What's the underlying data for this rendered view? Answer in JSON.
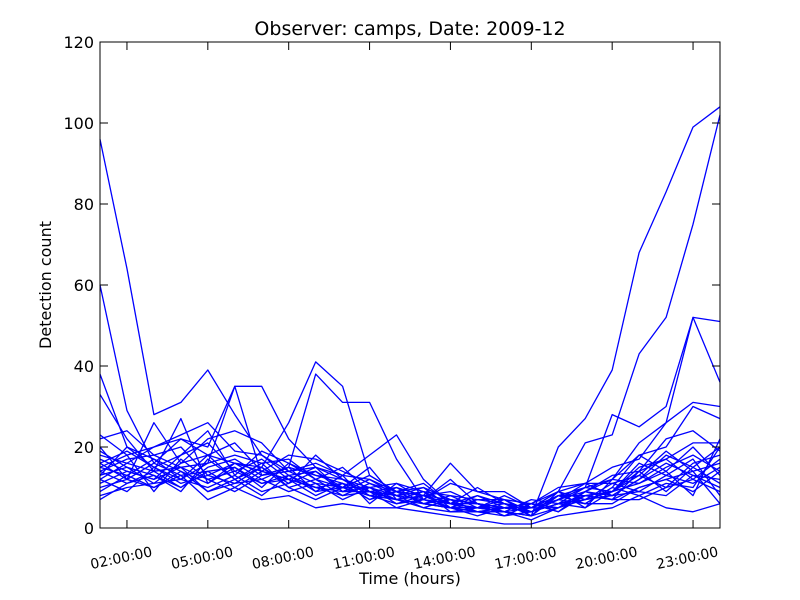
{
  "chart_data": {
    "type": "line",
    "title": "Observer: camps, Date: 2009-12",
    "xlabel": "Time (hours)",
    "ylabel": "Detection count",
    "xlim": [
      1,
      24
    ],
    "ylim": [
      0,
      120
    ],
    "grid": false,
    "line_color": "#0000ff",
    "x_ticks": [
      {
        "value": 2,
        "label": "02:00:00"
      },
      {
        "value": 5,
        "label": "05:00:00"
      },
      {
        "value": 8,
        "label": "08:00:00"
      },
      {
        "value": 11,
        "label": "11:00:00"
      },
      {
        "value": 14,
        "label": "14:00:00"
      },
      {
        "value": 17,
        "label": "17:00:00"
      },
      {
        "value": 20,
        "label": "20:00:00"
      },
      {
        "value": 23,
        "label": "23:00:00"
      }
    ],
    "y_ticks": [
      {
        "value": 0,
        "label": "0"
      },
      {
        "value": 20,
        "label": "20"
      },
      {
        "value": 40,
        "label": "40"
      },
      {
        "value": 60,
        "label": "60"
      },
      {
        "value": 80,
        "label": "80"
      },
      {
        "value": 100,
        "label": "100"
      },
      {
        "value": 120,
        "label": "120"
      }
    ],
    "x": [
      1,
      2,
      3,
      4,
      5,
      6,
      7,
      8,
      9,
      10,
      11,
      12,
      13,
      14,
      15,
      16,
      17,
      18,
      19,
      20,
      21,
      22,
      23,
      24
    ],
    "series": [
      {
        "values": [
          96,
          64,
          28,
          31,
          39,
          28,
          18,
          13,
          9,
          10,
          13,
          9,
          6,
          5,
          4,
          4,
          3,
          20,
          27,
          39,
          68,
          83,
          99,
          104
        ]
      },
      {
        "values": [
          60,
          29,
          16,
          22,
          20,
          35,
          35,
          22,
          15,
          12,
          10,
          7,
          5,
          4,
          4,
          5,
          6,
          9,
          21,
          23,
          43,
          52,
          75,
          102
        ]
      },
      {
        "values": [
          38,
          20,
          15,
          12,
          18,
          16,
          14,
          12,
          10,
          8,
          9,
          7,
          6,
          5,
          5,
          5,
          4,
          7,
          9,
          12,
          21,
          26,
          52,
          51
        ]
      },
      {
        "values": [
          33,
          22,
          14,
          27,
          11,
          16,
          15,
          26,
          41,
          35,
          13,
          9,
          8,
          7,
          6,
          5,
          4,
          8,
          10,
          28,
          25,
          30,
          52,
          36
        ]
      },
      {
        "values": [
          22,
          24,
          18,
          15,
          16,
          35,
          13,
          15,
          38,
          31,
          31,
          17,
          7,
          11,
          9,
          9,
          5,
          9,
          11,
          15,
          17,
          26,
          31,
          30
        ]
      },
      {
        "values": [
          23,
          18,
          20,
          23,
          26,
          19,
          18,
          14,
          15,
          13,
          18,
          23,
          12,
          6,
          5,
          7,
          4,
          6,
          10,
          12,
          18,
          20,
          30,
          27
        ]
      },
      {
        "values": [
          20,
          12,
          26,
          16,
          22,
          24,
          21,
          14,
          16,
          13,
          12,
          9,
          6,
          5,
          5,
          4,
          3,
          5,
          8,
          9,
          14,
          22,
          24,
          19
        ]
      },
      {
        "values": [
          18,
          16,
          20,
          22,
          18,
          21,
          14,
          18,
          17,
          14,
          11,
          8,
          9,
          6,
          4,
          3,
          4,
          6,
          7,
          9,
          15,
          17,
          21,
          21
        ]
      },
      {
        "values": [
          17,
          14,
          12,
          18,
          24,
          13,
          19,
          16,
          12,
          10,
          15,
          7,
          8,
          9,
          6,
          5,
          4,
          7,
          11,
          8,
          12,
          18,
          15,
          20
        ]
      },
      {
        "values": [
          16,
          19,
          15,
          18,
          21,
          14,
          17,
          12,
          15,
          9,
          10,
          11,
          7,
          6,
          10,
          6,
          5,
          8,
          6,
          10,
          18,
          14,
          20,
          13
        ]
      },
      {
        "values": [
          15,
          13,
          17,
          12,
          16,
          18,
          16,
          17,
          12,
          15,
          9,
          8,
          10,
          7,
          6,
          4,
          2,
          5,
          9,
          13,
          14,
          17,
          12,
          17
        ]
      },
      {
        "values": [
          14,
          17,
          18,
          20,
          13,
          16,
          12,
          15,
          13,
          11,
          9,
          10,
          6,
          8,
          5,
          8,
          5,
          7,
          10,
          9,
          11,
          15,
          18,
          14
        ]
      },
      {
        "values": [
          13,
          15,
          11,
          16,
          18,
          12,
          15,
          11,
          18,
          12,
          8,
          9,
          11,
          6,
          8,
          5,
          6,
          4,
          8,
          7,
          10,
          12,
          14,
          16
        ]
      },
      {
        "values": [
          12,
          16,
          14,
          10,
          15,
          17,
          13,
          14,
          11,
          10,
          10,
          6,
          7,
          5,
          7,
          6,
          4,
          6,
          5,
          9,
          13,
          10,
          16,
          18
        ]
      },
      {
        "values": [
          11,
          14,
          12,
          15,
          12,
          14,
          11,
          13,
          14,
          9,
          12,
          8,
          5,
          7,
          4,
          5,
          5,
          9,
          7,
          11,
          9,
          13,
          11,
          15
        ]
      },
      {
        "values": [
          10,
          12,
          16,
          13,
          14,
          10,
          14,
          12,
          10,
          11,
          7,
          10,
          8,
          6,
          6,
          3,
          6,
          5,
          9,
          8,
          12,
          16,
          13,
          12
        ]
      },
      {
        "values": [
          9,
          13,
          10,
          14,
          11,
          15,
          10,
          16,
          13,
          12,
          9,
          7,
          9,
          4,
          5,
          6,
          3,
          8,
          6,
          10,
          8,
          11,
          10,
          20
        ]
      },
      {
        "values": [
          14,
          11,
          13,
          9,
          17,
          12,
          16,
          10,
          12,
          8,
          11,
          9,
          6,
          7,
          6,
          4,
          7,
          6,
          8,
          7,
          14,
          9,
          15,
          11
        ]
      },
      {
        "values": [
          8,
          10,
          11,
          12,
          10,
          13,
          9,
          11,
          14,
          10,
          8,
          6,
          8,
          5,
          3,
          5,
          4,
          7,
          6,
          6,
          10,
          12,
          9,
          14
        ]
      },
      {
        "values": [
          12,
          9,
          15,
          11,
          13,
          11,
          12,
          9,
          11,
          7,
          10,
          8,
          7,
          6,
          5,
          4,
          5,
          5,
          7,
          8,
          9,
          8,
          13,
          10
        ]
      },
      {
        "values": [
          15,
          18,
          9,
          17,
          12,
          9,
          13,
          15,
          9,
          13,
          6,
          11,
          9,
          8,
          7,
          7,
          3,
          9,
          5,
          12,
          11,
          14,
          8,
          22
        ]
      },
      {
        "values": [
          7,
          11,
          14,
          15,
          9,
          12,
          8,
          13,
          10,
          9,
          9,
          5,
          7,
          12,
          6,
          5,
          6,
          4,
          9,
          7,
          7,
          10,
          12,
          9
        ]
      },
      {
        "values": [
          19,
          15,
          13,
          10,
          14,
          15,
          11,
          12,
          8,
          11,
          7,
          9,
          10,
          5,
          8,
          6,
          5,
          8,
          8,
          9,
          16,
          13,
          17,
          8
        ]
      },
      {
        "values": [
          13,
          20,
          17,
          14,
          9,
          11,
          15,
          10,
          7,
          10,
          8,
          7,
          8,
          16,
          9,
          7,
          6,
          10,
          11,
          11,
          13,
          19,
          14,
          6
        ]
      },
      {
        "values": [
          16,
          12,
          10,
          13,
          7,
          10,
          7,
          8,
          5,
          6,
          5,
          5,
          4,
          3,
          2,
          1,
          1,
          3,
          4,
          5,
          8,
          5,
          4,
          6
        ]
      }
    ]
  }
}
